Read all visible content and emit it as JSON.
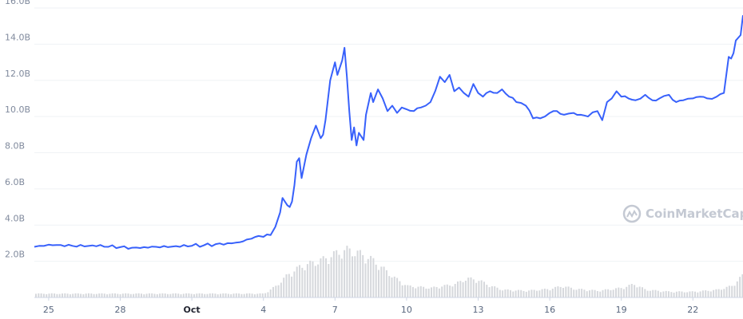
{
  "watermark": {
    "text": "CoinMarketCap"
  },
  "chart_data": {
    "type": "line",
    "title": "",
    "xlabel": "",
    "ylabel": "",
    "y_tick_labels": [
      "2.0B",
      "4.0B",
      "6.0B",
      "8.0B",
      "10.0B",
      "12.0B",
      "14.0B",
      "16.0B"
    ],
    "ylim": [
      0,
      16000000000
    ],
    "x_tick_labels": [
      {
        "label": "25",
        "day": 25
      },
      {
        "label": "28",
        "day": 28
      },
      {
        "label": "Oct",
        "day": 31
      },
      {
        "label": "4",
        "day": 34
      },
      {
        "label": "7",
        "day": 37
      },
      {
        "label": "10",
        "day": 40
      },
      {
        "label": "13",
        "day": 43
      },
      {
        "label": "16",
        "day": 46
      },
      {
        "label": "19",
        "day": 49
      },
      {
        "label": "22",
        "day": 52
      }
    ],
    "grid": true,
    "colors": {
      "line": "#3861fb",
      "volume": "#d6d8dc",
      "grid": "#eff2f5"
    },
    "series": [
      {
        "type": "line",
        "x": [
          24.4,
          24.6,
          25.0,
          25.5,
          26.0,
          26.5,
          27.0,
          27.5,
          28.0,
          28.5,
          29.0,
          29.5,
          30.0,
          30.5,
          31.0,
          31.5,
          32.0,
          32.5,
          33.0,
          33.3,
          33.5,
          33.8,
          34.0,
          34.3,
          34.5,
          34.7,
          34.8,
          35.0,
          35.1,
          35.2,
          35.3,
          35.4,
          35.5,
          35.6,
          35.8,
          36.0,
          36.2,
          36.4,
          36.5,
          36.6,
          36.8,
          37.0,
          37.1,
          37.3,
          37.4,
          37.5,
          37.6,
          37.7,
          37.8,
          37.9,
          38.0,
          38.2,
          38.3,
          38.5,
          38.6,
          38.8,
          39.0,
          39.2,
          39.4,
          39.6,
          39.8,
          40.0,
          40.3,
          40.6,
          40.8,
          41.0,
          41.2,
          41.4,
          41.6,
          41.8,
          42.0,
          42.2,
          42.4,
          42.6,
          42.8,
          43.0,
          43.2,
          43.5,
          43.8,
          44.0,
          44.3,
          44.6,
          45.0,
          45.3,
          45.6,
          46.0,
          46.3,
          46.6,
          47.0,
          47.3,
          47.6,
          48.0,
          48.2,
          48.4,
          48.6,
          48.8,
          49.0,
          49.3,
          49.6,
          50.0,
          50.3,
          50.6,
          51.0,
          51.3,
          51.6,
          52.0,
          52.3,
          52.6,
          53.0,
          53.3,
          53.5,
          53.6,
          53.7,
          53.8,
          54.0,
          54.1
        ],
        "y": [
          2.8,
          2.85,
          2.92,
          2.9,
          2.85,
          2.82,
          2.83,
          2.8,
          2.78,
          2.75,
          2.78,
          2.8,
          2.78,
          2.8,
          2.85,
          2.88,
          2.95,
          3.0,
          3.05,
          3.2,
          3.25,
          3.4,
          3.35,
          3.45,
          3.9,
          4.7,
          5.5,
          5.1,
          5.0,
          5.3,
          6.2,
          7.5,
          7.7,
          6.6,
          7.9,
          8.8,
          9.5,
          8.8,
          9.0,
          9.8,
          12.0,
          13.0,
          12.3,
          13.1,
          13.8,
          12.2,
          10.3,
          8.7,
          9.4,
          8.4,
          9.1,
          8.7,
          10.1,
          11.3,
          10.8,
          11.5,
          11.0,
          10.3,
          10.6,
          10.2,
          10.5,
          10.4,
          10.3,
          10.5,
          10.6,
          10.8,
          11.4,
          12.2,
          11.9,
          12.3,
          11.4,
          11.6,
          11.3,
          11.1,
          11.8,
          11.3,
          11.1,
          11.4,
          11.3,
          11.5,
          11.1,
          10.8,
          10.6,
          9.9,
          9.9,
          10.2,
          10.3,
          10.1,
          10.2,
          10.1,
          10.0,
          10.3,
          9.8,
          10.8,
          11.0,
          11.4,
          11.1,
          11.0,
          10.9,
          11.2,
          10.9,
          11.0,
          11.2,
          10.8,
          10.9,
          11.0,
          11.1,
          11.0,
          11.1,
          11.3,
          13.3,
          13.2,
          13.5,
          14.2,
          14.5,
          15.6
        ]
      },
      {
        "type": "bar",
        "name": "volume",
        "x": [
          24.4,
          25.0,
          26.0,
          27.0,
          28.0,
          29.0,
          30.0,
          31.0,
          32.0,
          33.0,
          34.0,
          34.5,
          35.0,
          35.5,
          36.0,
          36.5,
          37.0,
          37.5,
          38.0,
          38.5,
          39.0,
          39.5,
          40.0,
          41.0,
          42.0,
          42.5,
          43.0,
          43.5,
          44.0,
          45.0,
          46.0,
          46.5,
          47.0,
          48.0,
          49.0,
          49.5,
          50.0,
          51.0,
          52.0,
          53.0,
          53.6,
          54.1
        ],
        "y": [
          0.2,
          0.2,
          0.2,
          0.2,
          0.2,
          0.2,
          0.2,
          0.2,
          0.2,
          0.2,
          0.2,
          0.6,
          1.2,
          1.6,
          1.8,
          2.0,
          2.3,
          2.5,
          2.3,
          2.0,
          1.5,
          1.0,
          0.6,
          0.5,
          0.7,
          1.0,
          0.9,
          0.6,
          0.4,
          0.35,
          0.45,
          0.6,
          0.45,
          0.35,
          0.5,
          0.7,
          0.4,
          0.3,
          0.3,
          0.4,
          0.6,
          1.2
        ]
      }
    ]
  }
}
